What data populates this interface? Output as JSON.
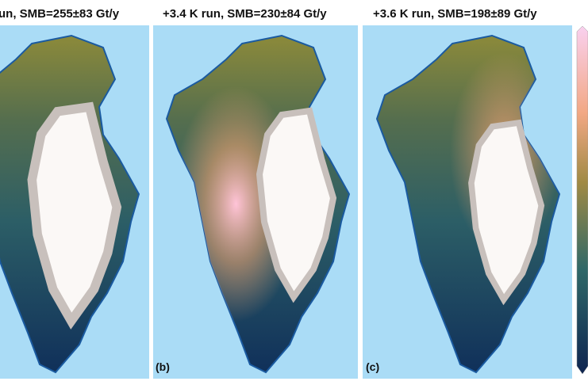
{
  "panels": [
    {
      "title": "un, SMB=255±83 Gt/y"
    },
    {
      "title": "+3.4 K run, SMB=230±84 Gt/y",
      "label": "(b)"
    },
    {
      "title": "+3.6 K run, SMB=198±89 Gt/y",
      "label": "(c)"
    }
  ]
}
